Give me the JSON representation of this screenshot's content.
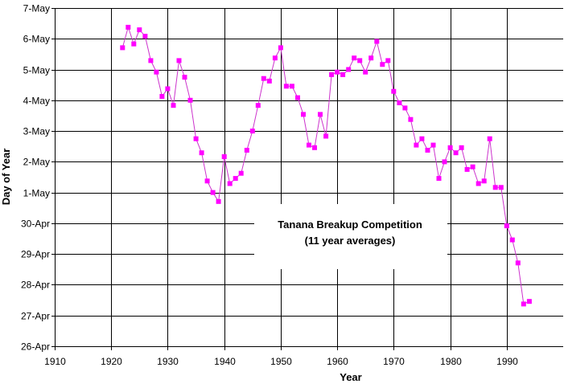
{
  "chart_data": {
    "type": "line",
    "title": "",
    "xlabel": "Year",
    "ylabel": "Day of Year",
    "xlim": [
      1910,
      2000
    ],
    "x_ticks": [
      "1910",
      "1920",
      "1930",
      "1940",
      "1950",
      "1960",
      "1970",
      "1980",
      "1990"
    ],
    "ylim": [
      "26-Apr",
      "7-May"
    ],
    "y_ticks": [
      "26-Apr",
      "27-Apr",
      "28-Apr",
      "29-Apr",
      "30-Apr",
      "1-May",
      "2-May",
      "3-May",
      "4-May",
      "5-May",
      "6-May",
      "7-May"
    ],
    "grid": {
      "horizontal": true,
      "vertical": true
    },
    "line_color": "#cc33cc",
    "marker_color": "#ff00ff",
    "annotation": [
      "Tanana Breakup Competition",
      "(11 year averages)"
    ],
    "series": [
      {
        "points": [
          {
            "x": 1922,
            "y": "5-May 17:00"
          },
          {
            "x": 1923,
            "y": "6-May 09:00"
          },
          {
            "x": 1924,
            "y": "5-May 20:00"
          },
          {
            "x": 1925,
            "y": "6-May 07:00"
          },
          {
            "x": 1926,
            "y": "6-May 02:00"
          },
          {
            "x": 1927,
            "y": "5-May 07:00"
          },
          {
            "x": 1928,
            "y": "4-May 22:00"
          },
          {
            "x": 1929,
            "y": "4-May 03:00"
          },
          {
            "x": 1930,
            "y": "4-May 09:00"
          },
          {
            "x": 1931,
            "y": "3-May 20:00"
          },
          {
            "x": 1932,
            "y": "5-May 07:00"
          },
          {
            "x": 1933,
            "y": "4-May 18:00"
          },
          {
            "x": 1934,
            "y": "4-May 00:00"
          },
          {
            "x": 1935,
            "y": "2-May 18:00"
          },
          {
            "x": 1936,
            "y": "2-May 07:00"
          },
          {
            "x": 1937,
            "y": "1-May 09:00"
          },
          {
            "x": 1938,
            "y": "1-May 00:00"
          },
          {
            "x": 1939,
            "y": "30-Apr 17:00"
          },
          {
            "x": 1940,
            "y": "2-May 04:00"
          },
          {
            "x": 1941,
            "y": "1-May 07:00"
          },
          {
            "x": 1942,
            "y": "1-May 11:00"
          },
          {
            "x": 1943,
            "y": "1-May 15:00"
          },
          {
            "x": 1944,
            "y": "2-May 09:00"
          },
          {
            "x": 1945,
            "y": "3-May 00:00"
          },
          {
            "x": 1946,
            "y": "3-May 20:00"
          },
          {
            "x": 1947,
            "y": "4-May 17:00"
          },
          {
            "x": 1948,
            "y": "4-May 15:00"
          },
          {
            "x": 1949,
            "y": "5-May 09:00"
          },
          {
            "x": 1950,
            "y": "5-May 17:00"
          },
          {
            "x": 1951,
            "y": "4-May 11:00"
          },
          {
            "x": 1952,
            "y": "4-May 11:00"
          },
          {
            "x": 1953,
            "y": "4-May 02:00"
          },
          {
            "x": 1954,
            "y": "3-May 13:00"
          },
          {
            "x": 1955,
            "y": "2-May 13:00"
          },
          {
            "x": 1956,
            "y": "2-May 11:00"
          },
          {
            "x": 1957,
            "y": "3-May 13:00"
          },
          {
            "x": 1958,
            "y": "2-May 20:00"
          },
          {
            "x": 1959,
            "y": "4-May 20:00"
          },
          {
            "x": 1960,
            "y": "4-May 22:00"
          },
          {
            "x": 1961,
            "y": "4-May 20:00"
          },
          {
            "x": 1962,
            "y": "5-May 00:00"
          },
          {
            "x": 1963,
            "y": "5-May 09:00"
          },
          {
            "x": 1964,
            "y": "5-May 07:00"
          },
          {
            "x": 1965,
            "y": "4-May 22:00"
          },
          {
            "x": 1966,
            "y": "5-May 09:00"
          },
          {
            "x": 1967,
            "y": "5-May 22:00"
          },
          {
            "x": 1968,
            "y": "5-May 04:00"
          },
          {
            "x": 1969,
            "y": "5-May 07:00"
          },
          {
            "x": 1970,
            "y": "4-May 07:00"
          },
          {
            "x": 1971,
            "y": "3-May 22:00"
          },
          {
            "x": 1972,
            "y": "3-May 18:00"
          },
          {
            "x": 1973,
            "y": "3-May 09:00"
          },
          {
            "x": 1974,
            "y": "2-May 13:00"
          },
          {
            "x": 1975,
            "y": "2-May 18:00"
          },
          {
            "x": 1976,
            "y": "2-May 09:00"
          },
          {
            "x": 1977,
            "y": "2-May 13:00"
          },
          {
            "x": 1978,
            "y": "1-May 11:00"
          },
          {
            "x": 1979,
            "y": "2-May 00:00"
          },
          {
            "x": 1980,
            "y": "2-May 11:00"
          },
          {
            "x": 1981,
            "y": "2-May 07:00"
          },
          {
            "x": 1982,
            "y": "2-May 11:00"
          },
          {
            "x": 1983,
            "y": "1-May 18:00"
          },
          {
            "x": 1984,
            "y": "1-May 20:00"
          },
          {
            "x": 1985,
            "y": "1-May 07:00"
          },
          {
            "x": 1986,
            "y": "1-May 09:00"
          },
          {
            "x": 1987,
            "y": "2-May 18:00"
          },
          {
            "x": 1988,
            "y": "1-May 04:00"
          },
          {
            "x": 1989,
            "y": "1-May 04:00"
          },
          {
            "x": 1990,
            "y": "29-Apr 22:00"
          },
          {
            "x": 1991,
            "y": "29-Apr 11:00"
          },
          {
            "x": 1992,
            "y": "28-Apr 17:00"
          },
          {
            "x": 1993,
            "y": "27-Apr 09:00"
          },
          {
            "x": 1994,
            "y": "27-Apr 11:00"
          }
        ]
      }
    ]
  }
}
